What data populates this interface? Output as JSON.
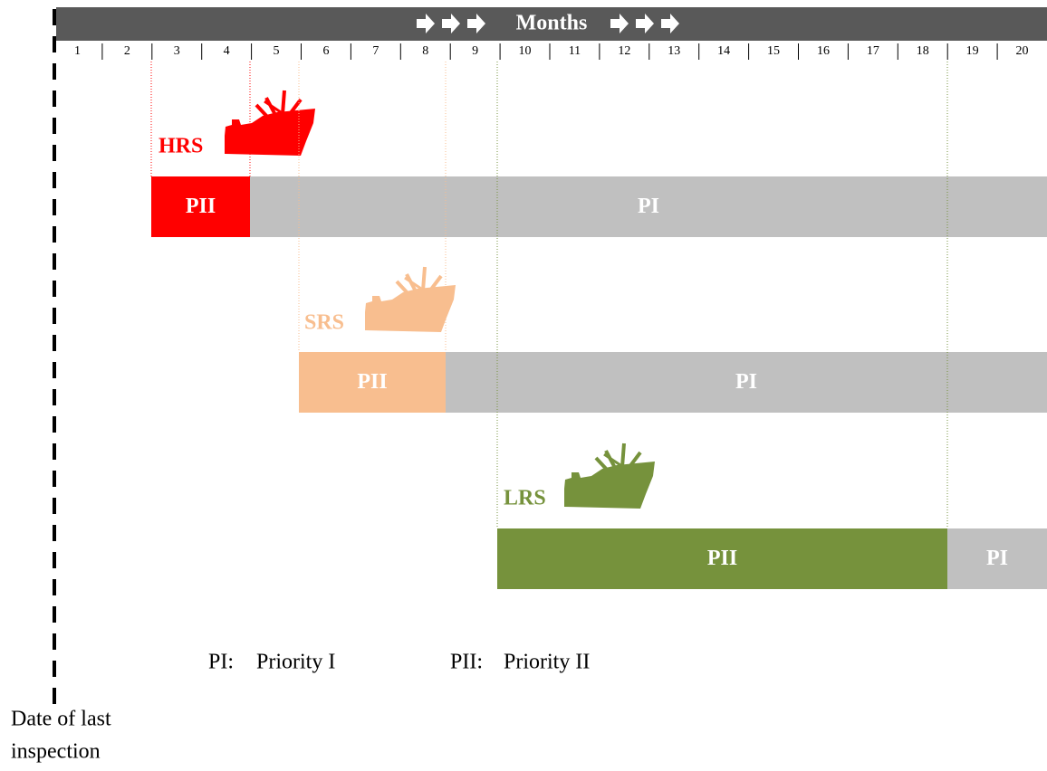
{
  "header": {
    "title": "Months"
  },
  "months": [
    1,
    2,
    3,
    4,
    5,
    6,
    7,
    8,
    9,
    10,
    11,
    12,
    13,
    14,
    15,
    16,
    17,
    18,
    19,
    20
  ],
  "rows": [
    {
      "label": "HRS",
      "color": "#ff0000",
      "segments": [
        {
          "label": "PII",
          "color": "#ff0000"
        },
        {
          "label": "PI",
          "color": "#c0c0c0"
        }
      ]
    },
    {
      "label": "SRS",
      "color": "#f8be8f",
      "segments": [
        {
          "label": "PII",
          "color": "#f8be8f"
        },
        {
          "label": "PI",
          "color": "#c0c0c0"
        }
      ]
    },
    {
      "label": "LRS",
      "color": "#76923c",
      "segments": [
        {
          "label": "PII",
          "color": "#76923c"
        },
        {
          "label": "PI",
          "color": "#c0c0c0"
        }
      ]
    }
  ],
  "legend": [
    {
      "term": "PI:",
      "desc": "Priority I"
    },
    {
      "term": "PII:",
      "desc": "Priority II"
    }
  ],
  "footer": [
    "Date of last",
    "inspection"
  ]
}
